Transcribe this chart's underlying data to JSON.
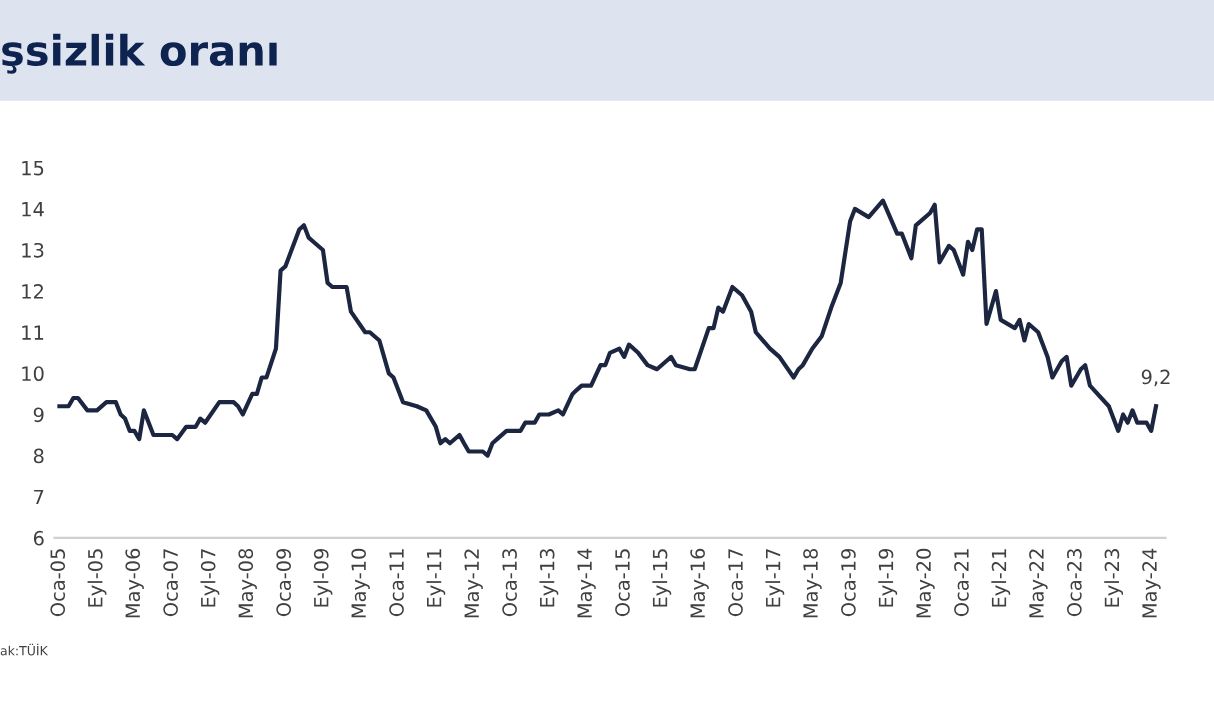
{
  "chart_data": {
    "type": "line",
    "title": "şsizlik oranı",
    "x": [
      "2005-01",
      "2005-03",
      "2005-04",
      "2005-05",
      "2005-07",
      "2005-09",
      "2005-11",
      "2006-01",
      "2006-02",
      "2006-03",
      "2006-04",
      "2006-05",
      "2006-06",
      "2006-07",
      "2006-09",
      "2007-01",
      "2007-02",
      "2007-04",
      "2007-06",
      "2007-07",
      "2007-08",
      "2007-11",
      "2008-02",
      "2008-03",
      "2008-04",
      "2008-06",
      "2008-07",
      "2008-08",
      "2008-09",
      "2008-11",
      "2008-12",
      "2009-01",
      "2009-04",
      "2009-05",
      "2009-06",
      "2009-07",
      "2009-09",
      "2009-10",
      "2009-11",
      "2010-02",
      "2010-03",
      "2010-06",
      "2010-07",
      "2010-09",
      "2010-11",
      "2010-12",
      "2011-02",
      "2011-05",
      "2011-07",
      "2011-09",
      "2011-10",
      "2011-11",
      "2011-12",
      "2012-02",
      "2012-03",
      "2012-04",
      "2012-07",
      "2012-08",
      "2012-09",
      "2012-10",
      "2012-12",
      "2013-03",
      "2013-04",
      "2013-06",
      "2013-07",
      "2013-09",
      "2013-11",
      "2013-12",
      "2014-02",
      "2014-03",
      "2014-04",
      "2014-06",
      "2014-08",
      "2014-09",
      "2014-10",
      "2014-12",
      "2015-01",
      "2015-02",
      "2015-04",
      "2015-06",
      "2015-08",
      "2015-10",
      "2015-11",
      "2015-12",
      "2016-03",
      "2016-04",
      "2016-07",
      "2016-08",
      "2016-09",
      "2016-10",
      "2016-12",
      "2017-02",
      "2017-04",
      "2017-05",
      "2017-08",
      "2017-10",
      "2018-01",
      "2018-02",
      "2018-03",
      "2018-05",
      "2018-07",
      "2018-09",
      "2018-11",
      "2019-01",
      "2019-02",
      "2019-05",
      "2019-08",
      "2019-11",
      "2019-12",
      "2020-02",
      "2020-03",
      "2020-06",
      "2020-07",
      "2020-08",
      "2020-10",
      "2020-11",
      "2021-01",
      "2021-02",
      "2021-03",
      "2021-04",
      "2021-05",
      "2021-06",
      "2021-08",
      "2021-09",
      "2021-12",
      "2022-01",
      "2022-02",
      "2022-03",
      "2022-05",
      "2022-07",
      "2022-08",
      "2022-10",
      "2022-11",
      "2022-12",
      "2023-02",
      "2023-03",
      "2023-04",
      "2023-08",
      "2023-10",
      "2023-11",
      "2023-12",
      "2024-01",
      "2024-02",
      "2024-04",
      "2024-05",
      "2024-06"
    ],
    "series": [
      {
        "color": "#1c2640",
        "values": [
          9.2,
          9.2,
          9.4,
          9.4,
          9.1,
          9.1,
          9.3,
          9.3,
          9.0,
          8.9,
          8.6,
          8.6,
          8.4,
          9.1,
          8.5,
          8.5,
          8.4,
          8.7,
          8.7,
          8.9,
          8.8,
          9.3,
          9.3,
          9.2,
          9.0,
          9.5,
          9.5,
          9.9,
          9.9,
          10.6,
          12.5,
          12.6,
          13.5,
          13.6,
          13.3,
          13.2,
          13.0,
          12.2,
          12.1,
          12.1,
          11.5,
          11.0,
          11.0,
          10.8,
          10.0,
          9.9,
          9.3,
          9.2,
          9.1,
          8.7,
          8.3,
          8.4,
          8.3,
          8.5,
          8.3,
          8.1,
          8.1,
          8.0,
          8.3,
          8.4,
          8.6,
          8.6,
          8.8,
          8.8,
          9.0,
          9.0,
          9.1,
          9.0,
          9.5,
          9.6,
          9.7,
          9.7,
          10.2,
          10.2,
          10.5,
          10.6,
          10.4,
          10.7,
          10.5,
          10.2,
          10.1,
          10.3,
          10.4,
          10.2,
          10.1,
          10.1,
          11.1,
          11.1,
          11.6,
          11.5,
          12.1,
          11.9,
          11.5,
          11.0,
          10.6,
          10.4,
          9.9,
          10.1,
          10.2,
          10.6,
          10.9,
          11.6,
          12.2,
          13.7,
          14.0,
          13.8,
          14.2,
          13.4,
          13.4,
          12.8,
          13.6,
          13.9,
          14.1,
          12.7,
          13.1,
          13.0,
          12.4,
          13.2,
          13.0,
          13.5,
          13.5,
          11.2,
          12.0,
          11.3,
          11.1,
          11.3,
          10.8,
          11.2,
          11.0,
          10.4,
          9.9,
          10.3,
          10.4,
          9.7,
          10.1,
          10.2,
          9.7,
          9.2,
          8.6,
          9.0,
          8.8,
          9.1,
          8.8,
          8.8,
          8.6,
          9.2
        ]
      }
    ],
    "xlim": [
      "2004-12",
      "2024-08"
    ],
    "xticks": [
      {
        "value": "2005-01",
        "label": "Oca-05"
      },
      {
        "value": "2005-09",
        "label": "Eyl-05"
      },
      {
        "value": "2006-05",
        "label": "May-06"
      },
      {
        "value": "2007-01",
        "label": "Oca-07"
      },
      {
        "value": "2007-09",
        "label": "Eyl-07"
      },
      {
        "value": "2008-05",
        "label": "May-08"
      },
      {
        "value": "2009-01",
        "label": "Oca-09"
      },
      {
        "value": "2009-09",
        "label": "Eyl-09"
      },
      {
        "value": "2010-05",
        "label": "May-10"
      },
      {
        "value": "2011-01",
        "label": "Oca-11"
      },
      {
        "value": "2011-09",
        "label": "Eyl-11"
      },
      {
        "value": "2012-05",
        "label": "May-12"
      },
      {
        "value": "2013-01",
        "label": "Oca-13"
      },
      {
        "value": "2013-09",
        "label": "Eyl-13"
      },
      {
        "value": "2014-05",
        "label": "May-14"
      },
      {
        "value": "2015-01",
        "label": "Oca-15"
      },
      {
        "value": "2015-09",
        "label": "Eyl-15"
      },
      {
        "value": "2016-05",
        "label": "May-16"
      },
      {
        "value": "2017-01",
        "label": "Oca-17"
      },
      {
        "value": "2017-09",
        "label": "Eyl-17"
      },
      {
        "value": "2018-05",
        "label": "May-18"
      },
      {
        "value": "2019-01",
        "label": "Oca-19"
      },
      {
        "value": "2019-09",
        "label": "Eyl-19"
      },
      {
        "value": "2020-05",
        "label": "May-20"
      },
      {
        "value": "2021-01",
        "label": "Oca-21"
      },
      {
        "value": "2021-09",
        "label": "Eyl-21"
      },
      {
        "value": "2022-05",
        "label": "May-22"
      },
      {
        "value": "2023-01",
        "label": "Oca-23"
      },
      {
        "value": "2023-09",
        "label": "Eyl-23"
      },
      {
        "value": "2024-05",
        "label": "May-24"
      }
    ],
    "ylim": [
      6,
      15
    ],
    "yticks": [
      6,
      7,
      8,
      9,
      10,
      11,
      12,
      13,
      14,
      15
    ],
    "grid": false,
    "marker": "none",
    "line_style": "solid",
    "annotations": [
      {
        "text": "9,2",
        "x": "2024-06",
        "y": 9.2
      },
      "ak:TÜİK"
    ]
  }
}
